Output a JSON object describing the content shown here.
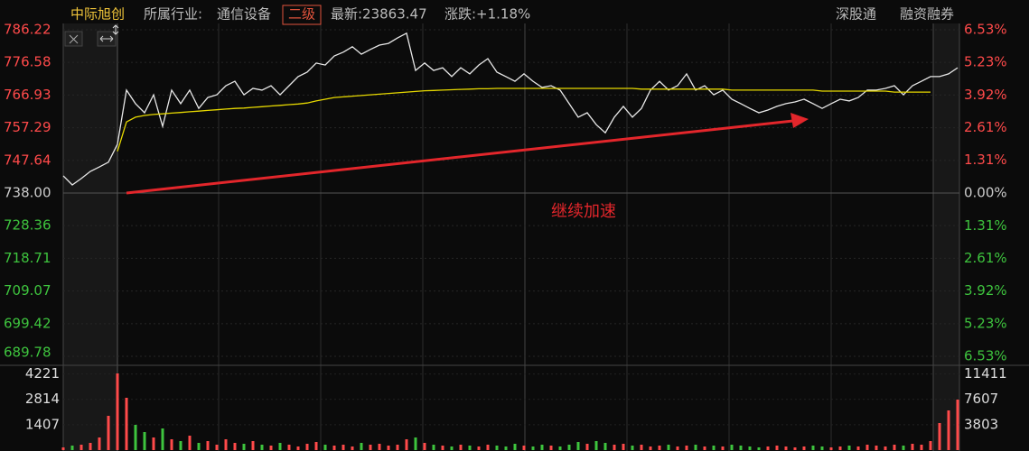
{
  "header": {
    "stock_name": "中际旭创",
    "industry_label": "所属行业:",
    "industry": "通信设备",
    "level": "二级",
    "latest": "最新:23863.47",
    "change": "涨跌:+1.18%",
    "buttons": [
      "深股通",
      "融资融券"
    ]
  },
  "chart_data": [
    {
      "type": "line",
      "annotation": "继续加速",
      "ylim": [
        689.78,
        786.22
      ],
      "yticks": [
        786.22,
        776.58,
        766.93,
        757.29,
        747.64,
        {
          "value": 738,
          "label": "738.00"
        },
        728.36,
        718.71,
        709.07,
        699.42,
        689.78
      ],
      "y2lim": [
        -6.53,
        6.53
      ],
      "y2ticks": [
        {
          "value": 6.53,
          "label": "6.53%"
        },
        {
          "value": 5.23,
          "label": "5.23%"
        },
        {
          "value": 3.92,
          "label": "3.92%"
        },
        {
          "value": 2.61,
          "label": "2.61%"
        },
        {
          "value": 1.31,
          "label": "1.31%"
        },
        {
          "value": 0,
          "label": "0.00%"
        },
        {
          "value": -1.31,
          "label": "1.31%"
        },
        {
          "value": -2.61,
          "label": "2.61%"
        },
        {
          "value": -3.92,
          "label": "3.92%"
        },
        {
          "value": -5.23,
          "label": "5.23%"
        },
        {
          "value": -6.53,
          "label": "6.53%"
        }
      ],
      "up_color": "#ff4a4a",
      "down_color": "#3ec43e",
      "flat_color": "#cccccc",
      "grid": true,
      "series": [
        {
          "name": "price",
          "color": "#e8e8e8",
          "values": [
            743.1,
            740.4,
            742.3,
            744.4,
            745.7,
            747.1,
            752.4,
            768.4,
            764.4,
            761.7,
            767.0,
            757.7,
            768.4,
            764.4,
            768.4,
            763.0,
            766.2,
            767.0,
            769.7,
            771.0,
            767.0,
            768.9,
            768.4,
            769.7,
            767.0,
            769.7,
            772.4,
            773.7,
            776.4,
            775.8,
            778.5,
            779.6,
            781.2,
            779.0,
            780.4,
            781.7,
            782.2,
            783.8,
            785.2,
            774.2,
            776.4,
            774.2,
            775.0,
            772.4,
            775.0,
            773.2,
            775.8,
            777.7,
            773.7,
            772.4,
            771.0,
            773.2,
            771.0,
            769.2,
            769.7,
            768.4,
            764.4,
            760.4,
            761.7,
            758.2,
            755.8,
            760.4,
            763.6,
            760.4,
            763.0,
            768.4,
            771.0,
            768.4,
            769.7,
            773.2,
            768.4,
            769.7,
            767.0,
            768.4,
            765.7,
            764.4,
            763.0,
            761.7,
            762.5,
            763.6,
            764.4,
            764.9,
            765.7,
            764.4,
            763.0,
            764.4,
            765.7,
            765.2,
            766.2,
            768.4,
            768.4,
            768.9,
            769.7,
            767.0,
            769.7,
            771.0,
            772.4,
            772.4,
            773.2,
            775.0
          ]
        },
        {
          "name": "average",
          "color": "#e6d800",
          "values": [
            null,
            null,
            null,
            null,
            null,
            null,
            750.3,
            759.0,
            760.4,
            760.9,
            761.2,
            761.4,
            761.6,
            761.8,
            762.0,
            762.2,
            762.4,
            762.6,
            762.8,
            763.0,
            763.1,
            763.3,
            763.5,
            763.7,
            763.9,
            764.1,
            764.3,
            764.6,
            765.2,
            765.7,
            766.2,
            766.4,
            766.6,
            766.8,
            767.0,
            767.2,
            767.4,
            767.6,
            767.8,
            768.0,
            768.2,
            768.3,
            768.4,
            768.5,
            768.6,
            768.7,
            768.8,
            768.8,
            768.9,
            768.9,
            768.9,
            768.9,
            768.9,
            768.9,
            768.9,
            768.9,
            768.9,
            768.9,
            768.9,
            768.9,
            768.9,
            768.9,
            768.9,
            768.9,
            768.7,
            768.7,
            768.7,
            768.7,
            768.7,
            768.7,
            768.7,
            768.7,
            768.7,
            768.7,
            768.4,
            768.4,
            768.4,
            768.4,
            768.4,
            768.4,
            768.4,
            768.4,
            768.4,
            768.4,
            768.1,
            768.1,
            768.1,
            768.1,
            768.1,
            768.1,
            768.1,
            768.1,
            767.8,
            767.8,
            767.8,
            767.8,
            767.8,
            null,
            null,
            null
          ]
        }
      ]
    },
    {
      "type": "bar",
      "ylim": [
        0,
        4350
      ],
      "yticks": [
        4221,
        2814,
        1407
      ],
      "y2lim": [
        0,
        11760
      ],
      "y2ticks": [
        11411,
        7607,
        3803
      ],
      "up_color": "#ff4a4a",
      "down_color": "#3ec43e",
      "values": [
        150,
        250,
        300,
        400,
        700,
        1900,
        4250,
        2900,
        1400,
        1000,
        700,
        1200,
        600,
        500,
        800,
        400,
        500,
        300,
        600,
        400,
        350,
        500,
        300,
        250,
        400,
        300,
        200,
        350,
        450,
        300,
        250,
        300,
        200,
        400,
        300,
        350,
        250,
        300,
        600,
        700,
        400,
        300,
        250,
        200,
        300,
        250,
        200,
        300,
        250,
        200,
        350,
        250,
        200,
        300,
        250,
        200,
        300,
        450,
        350,
        500,
        400,
        300,
        350,
        250,
        300,
        200,
        250,
        300,
        200,
        250,
        300,
        200,
        250,
        200,
        300,
        250,
        200,
        150,
        200,
        250,
        200,
        150,
        200,
        250,
        200,
        150,
        200,
        250,
        200,
        300,
        250,
        200,
        300,
        250,
        350,
        300,
        500,
        1500,
        2200,
        2800
      ]
    }
  ]
}
